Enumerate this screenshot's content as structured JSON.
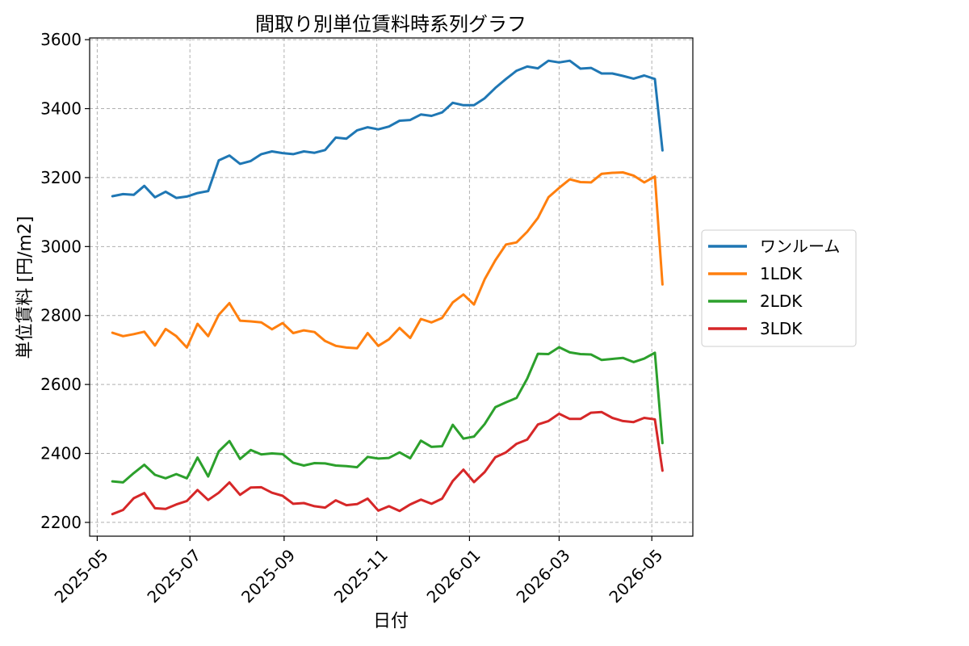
{
  "chart_data": {
    "type": "line",
    "title": "間取り別単位賃料時系列グラフ",
    "xlabel": "日付",
    "ylabel": "単位賃料 [円/m2]",
    "xlim": [
      "2025-04-26",
      "2026-05-28"
    ],
    "ylim": [
      2160,
      3605
    ],
    "x_ticks": [
      "2025-05",
      "2025-07",
      "2025-09",
      "2025-11",
      "2026-01",
      "2026-03",
      "2026-05"
    ],
    "x_tick_dates": [
      "2025-05-01",
      "2025-07-01",
      "2025-09-01",
      "2025-11-01",
      "2026-01-01",
      "2026-03-01",
      "2026-05-01"
    ],
    "y_ticks": [
      2200,
      2400,
      2600,
      2800,
      3000,
      3200,
      3400,
      3600
    ],
    "grid": true,
    "legend_position": "right-outside",
    "x": [
      "2025-05-11",
      "2025-05-18",
      "2025-05-25",
      "2025-06-01",
      "2025-06-08",
      "2025-06-15",
      "2025-06-22",
      "2025-06-29",
      "2025-07-06",
      "2025-07-13",
      "2025-07-20",
      "2025-07-27",
      "2025-08-03",
      "2025-08-10",
      "2025-08-17",
      "2025-08-24",
      "2025-08-31",
      "2025-09-07",
      "2025-09-14",
      "2025-09-21",
      "2025-09-28",
      "2025-10-05",
      "2025-10-12",
      "2025-10-19",
      "2025-10-26",
      "2025-11-02",
      "2025-11-09",
      "2025-11-16",
      "2025-11-23",
      "2025-11-30",
      "2025-12-07",
      "2025-12-14",
      "2025-12-21",
      "2025-12-28",
      "2026-01-04",
      "2026-01-11",
      "2026-01-18",
      "2026-01-25",
      "2026-02-01",
      "2026-02-08",
      "2026-02-15",
      "2026-02-22",
      "2026-03-01",
      "2026-03-08",
      "2026-03-15",
      "2026-03-22",
      "2026-03-29",
      "2026-04-05",
      "2026-04-12",
      "2026-04-19",
      "2026-04-26",
      "2026-05-03",
      "2026-05-08"
    ],
    "series": [
      {
        "name": "ワンルーム",
        "color": "#1f77b4",
        "values": [
          3146,
          3152,
          3150,
          3176,
          3143,
          3159,
          3141,
          3145,
          3155,
          3161,
          3250,
          3264,
          3240,
          3248,
          3268,
          3276,
          3271,
          3268,
          3276,
          3272,
          3280,
          3316,
          3313,
          3337,
          3346,
          3340,
          3348,
          3365,
          3367,
          3383,
          3379,
          3389,
          3417,
          3410,
          3410,
          3430,
          3460,
          3486,
          3510,
          3522,
          3517,
          3539,
          3534,
          3539,
          3516,
          3518,
          3502,
          3502,
          3495,
          3487,
          3496,
          3486,
          3279
        ]
      },
      {
        "name": "1LDK",
        "color": "#ff7f0e",
        "values": [
          2750,
          2740,
          2746,
          2753,
          2713,
          2761,
          2740,
          2707,
          2776,
          2740,
          2802,
          2836,
          2785,
          2783,
          2780,
          2760,
          2778,
          2749,
          2757,
          2752,
          2726,
          2712,
          2707,
          2705,
          2749,
          2712,
          2731,
          2764,
          2735,
          2790,
          2780,
          2793,
          2838,
          2861,
          2832,
          2905,
          2960,
          3006,
          3012,
          3043,
          3083,
          3143,
          3170,
          3195,
          3187,
          3186,
          3211,
          3214,
          3215,
          3206,
          3186,
          3203,
          2890
        ]
      },
      {
        "name": "2LDK",
        "color": "#2ca02c",
        "values": [
          2319,
          2316,
          2343,
          2367,
          2338,
          2328,
          2340,
          2328,
          2388,
          2333,
          2406,
          2436,
          2384,
          2410,
          2397,
          2400,
          2398,
          2373,
          2365,
          2372,
          2371,
          2365,
          2363,
          2360,
          2390,
          2385,
          2387,
          2403,
          2386,
          2437,
          2419,
          2421,
          2483,
          2443,
          2449,
          2485,
          2534,
          2548,
          2561,
          2617,
          2689,
          2688,
          2708,
          2693,
          2688,
          2687,
          2671,
          2674,
          2677,
          2665,
          2675,
          2692,
          2430
        ]
      },
      {
        "name": "3LDK",
        "color": "#d62728",
        "values": [
          2224,
          2236,
          2270,
          2285,
          2241,
          2239,
          2252,
          2262,
          2294,
          2265,
          2286,
          2316,
          2280,
          2301,
          2302,
          2286,
          2277,
          2254,
          2256,
          2247,
          2243,
          2264,
          2250,
          2253,
          2269,
          2234,
          2247,
          2233,
          2252,
          2266,
          2254,
          2269,
          2320,
          2353,
          2317,
          2346,
          2389,
          2403,
          2428,
          2440,
          2484,
          2494,
          2515,
          2500,
          2500,
          2518,
          2520,
          2503,
          2494,
          2491,
          2503,
          2499,
          2350
        ]
      }
    ]
  }
}
